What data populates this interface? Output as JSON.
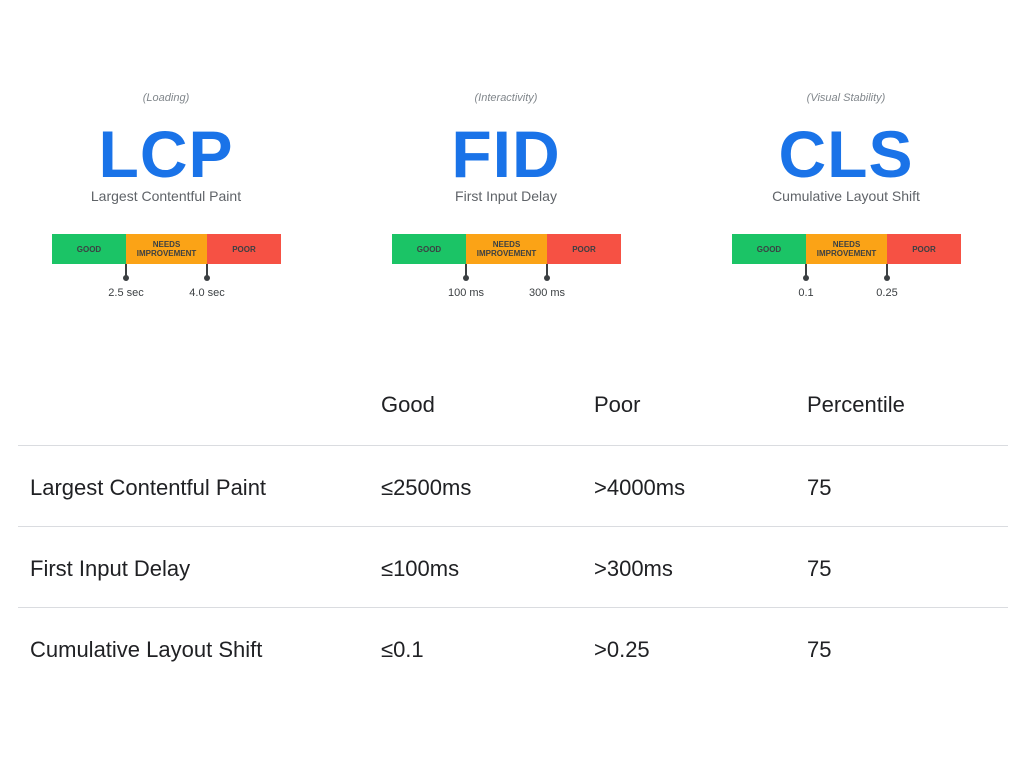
{
  "colors": {
    "good": "#1bc466",
    "needs_improvement": "#fba316",
    "poor": "#f65144",
    "accent": "#1a73e8"
  },
  "metrics": [
    {
      "category": "(Loading)",
      "abbr": "LCP",
      "name": "Largest Contentful Paint",
      "bar": {
        "good": "GOOD",
        "needs": "NEEDS\nIMPROVEMENT",
        "poor": "POOR"
      },
      "thresholds": [
        "2.5 sec",
        "4.0 sec"
      ]
    },
    {
      "category": "(Interactivity)",
      "abbr": "FID",
      "name": "First Input Delay",
      "bar": {
        "good": "GOOD",
        "needs": "NEEDS\nIMPROVEMENT",
        "poor": "POOR"
      },
      "thresholds": [
        "100 ms",
        "300 ms"
      ]
    },
    {
      "category": "(Visual Stability)",
      "abbr": "CLS",
      "name": "Cumulative Layout Shift",
      "bar": {
        "good": "GOOD",
        "needs": "NEEDS\nIMPROVEMENT",
        "poor": "POOR"
      },
      "thresholds": [
        "0.1",
        "0.25"
      ]
    }
  ],
  "table": {
    "headers": [
      "",
      "Good",
      "Poor",
      "Percentile"
    ],
    "rows": [
      [
        "Largest Contentful Paint",
        "≤2500ms",
        ">4000ms",
        "75"
      ],
      [
        "First Input Delay",
        "≤100ms",
        ">300ms",
        "75"
      ],
      [
        "Cumulative Layout Shift",
        "≤0.1",
        ">0.25",
        "75"
      ]
    ]
  }
}
